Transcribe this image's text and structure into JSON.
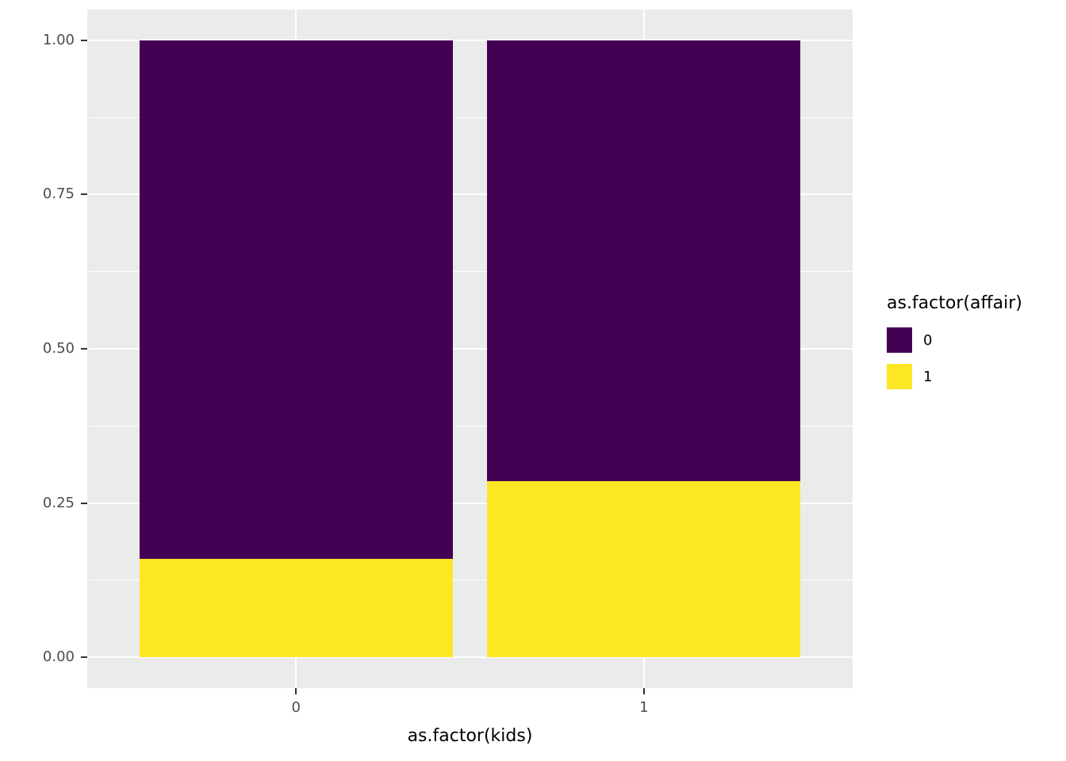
{
  "chart_data": {
    "type": "bar",
    "subtype": "stacked-fill",
    "categories": [
      "0",
      "1"
    ],
    "series": [
      {
        "name": "0",
        "color": "#440154",
        "values": [
          0.84,
          0.715
        ]
      },
      {
        "name": "1",
        "color": "#FDE725",
        "values": [
          0.16,
          0.285
        ]
      }
    ],
    "title": "",
    "xlabel": "as.factor(kids)",
    "ylabel": "",
    "ylim": [
      0,
      1
    ],
    "y_major_ticks": [
      0,
      0.25,
      0.5,
      0.75,
      1.0
    ],
    "y_tick_labels": [
      "0.00",
      "0.25",
      "0.50",
      "0.75",
      "1.00"
    ],
    "y_minor_ticks": [
      0.125,
      0.375,
      0.625,
      0.875
    ],
    "x_tick_labels": [
      "0",
      "1"
    ],
    "grid": "on",
    "legend": {
      "title": "as.factor(affair)",
      "position": "right",
      "entries": [
        {
          "label": "0",
          "color": "#440154"
        },
        {
          "label": "1",
          "color": "#FDE725"
        }
      ]
    },
    "colors": {
      "panel_background": "#EBEBEB",
      "grid": "#FFFFFF",
      "tick_mark": "#333333",
      "axis_text": "#4D4D4D",
      "title_text": "#000000"
    }
  }
}
